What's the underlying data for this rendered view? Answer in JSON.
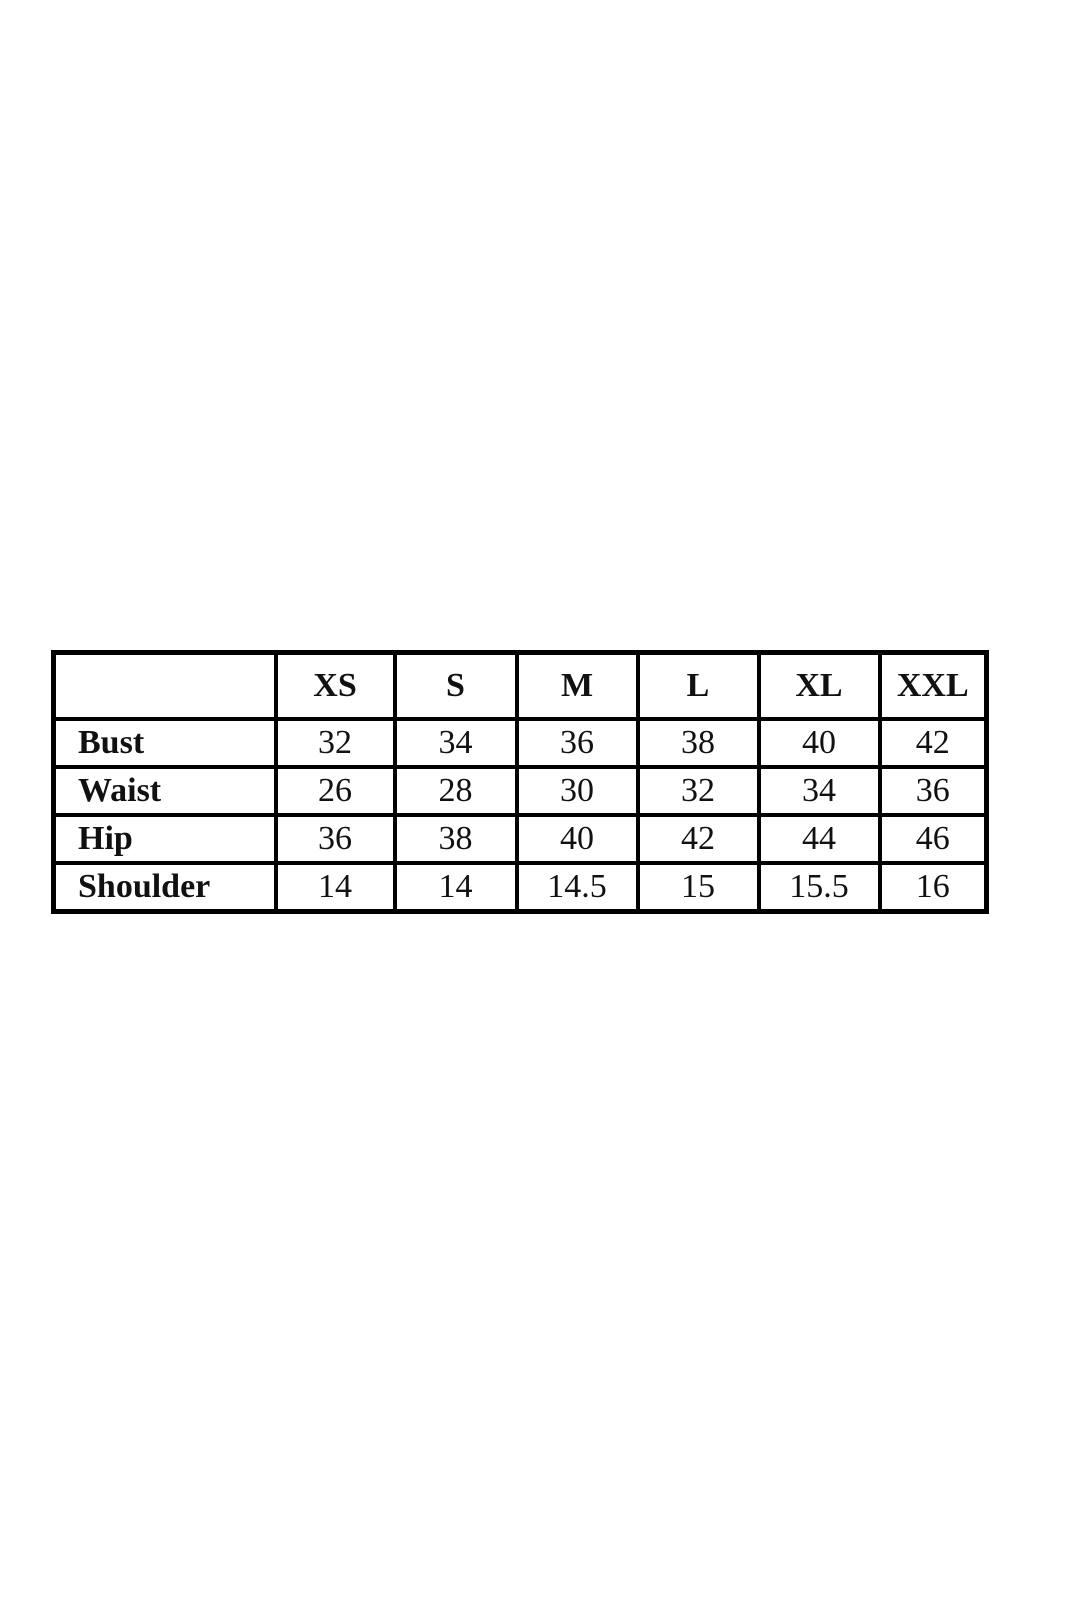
{
  "size_chart": {
    "corner": "",
    "columns": [
      "XS",
      "S",
      "M",
      "L",
      "XL",
      "XXL"
    ],
    "rows": [
      {
        "label": "Bust",
        "values": [
          "32",
          "34",
          "36",
          "38",
          "40",
          "42"
        ]
      },
      {
        "label": "Waist",
        "values": [
          "26",
          "28",
          "30",
          "32",
          "34",
          "36"
        ]
      },
      {
        "label": "Hip",
        "values": [
          "36",
          "38",
          "40",
          "42",
          "44",
          "46"
        ]
      },
      {
        "label": "Shoulder",
        "values": [
          "14",
          "14",
          "14.5",
          "15",
          "15.5",
          "16"
        ]
      }
    ]
  }
}
